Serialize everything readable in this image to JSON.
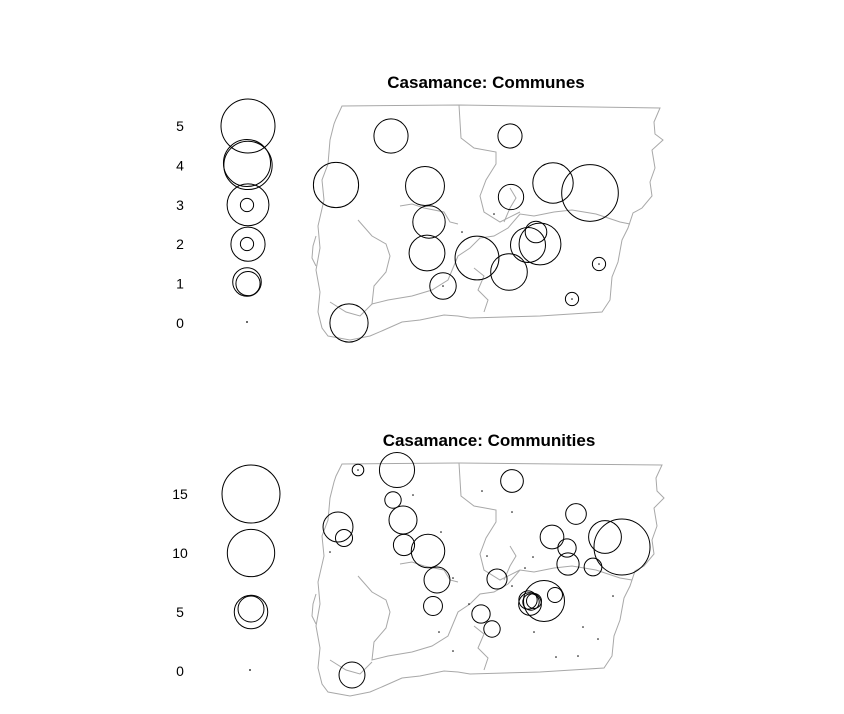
{
  "chart_data": [
    {
      "type": "bubble-map",
      "title": "Casamance: Communes",
      "size_legend": [
        5,
        4,
        3,
        2,
        1,
        0
      ],
      "bubbles": [
        {
          "value": 2.5
        },
        {
          "value": 2.0
        },
        {
          "value": 3.5
        },
        {
          "value": 1.0
        },
        {
          "value": 2.6
        },
        {
          "value": 5.5
        },
        {
          "value": 2.8
        },
        {
          "value": 1.1
        },
        {
          "value": 3.0
        },
        {
          "value": 0.8
        },
        {
          "value": 2.1
        },
        {
          "value": 1.8
        },
        {
          "value": 2.2
        },
        {
          "value": 3.3
        },
        {
          "value": 2.3
        },
        {
          "value": 1.4
        },
        {
          "value": 1.2
        },
        {
          "value": 0.3
        },
        {
          "value": 0.3
        },
        {
          "value": 0.3
        },
        {
          "value": 0.3
        },
        {
          "value": 3.8
        }
      ]
    },
    {
      "type": "bubble-map",
      "title": "Casamance: Communities",
      "size_legend": [
        15,
        10,
        5,
        0
      ],
      "bubbles": [
        {
          "value": 3.0
        },
        {
          "value": 0.6
        },
        {
          "value": 4.0
        },
        {
          "value": 1.3
        },
        {
          "value": 5.5
        },
        {
          "value": 3.5
        },
        {
          "value": 1.2
        },
        {
          "value": 2.0
        },
        {
          "value": 5.0
        },
        {
          "value": 2.3
        },
        {
          "value": 1.9
        },
        {
          "value": 2.5
        },
        {
          "value": 1.5
        },
        {
          "value": 2.2
        },
        {
          "value": 1.4
        },
        {
          "value": 14.0
        },
        {
          "value": 4.8
        },
        {
          "value": 1.8
        },
        {
          "value": 3.0
        },
        {
          "value": 7.5
        },
        {
          "value": 1.6
        },
        {
          "value": 1.5
        },
        {
          "value": 1.2
        },
        {
          "value": 1.2
        },
        {
          "value": 1.0
        },
        {
          "value": 2.3
        },
        {
          "value": 1.0
        },
        {
          "value": 1.5
        },
        {
          "value": 3.0
        }
      ]
    }
  ]
}
